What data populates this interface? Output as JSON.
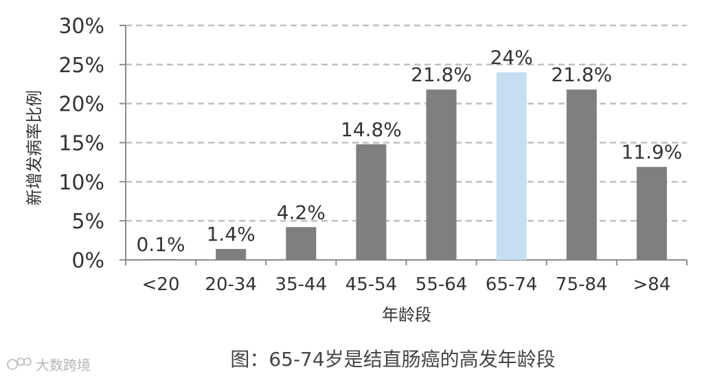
{
  "chart_data": {
    "type": "bar",
    "categories": [
      "<20",
      "20-34",
      "35-44",
      "45-54",
      "55-64",
      "65-74",
      "75-84",
      ">84"
    ],
    "values": [
      0.1,
      1.4,
      4.2,
      14.8,
      21.8,
      24,
      21.8,
      11.9
    ],
    "data_labels": [
      "0.1%",
      "1.4%",
      "4.2%",
      "14.8%",
      "21.8%",
      "24%",
      "21.8%",
      "11.9%"
    ],
    "highlight_index": 5,
    "colors": {
      "bar": "#7f7f7f",
      "highlight": "#c5dff2",
      "grid": "#bfbfbf",
      "axis": "#8c8c8c"
    },
    "ylim": [
      0,
      30
    ],
    "yticks": [
      0,
      5,
      10,
      15,
      20,
      25,
      30
    ],
    "ytick_labels": [
      "0%",
      "5%",
      "10%",
      "15%",
      "20%",
      "25%",
      "30%"
    ],
    "ylabel": "新增发病率比例",
    "xlabel": "年龄段",
    "grid": true,
    "grid_style": "dashed",
    "caption": "图：65-74岁是结直肠癌的高发年龄段"
  },
  "watermark": {
    "text": "大数跨境"
  }
}
